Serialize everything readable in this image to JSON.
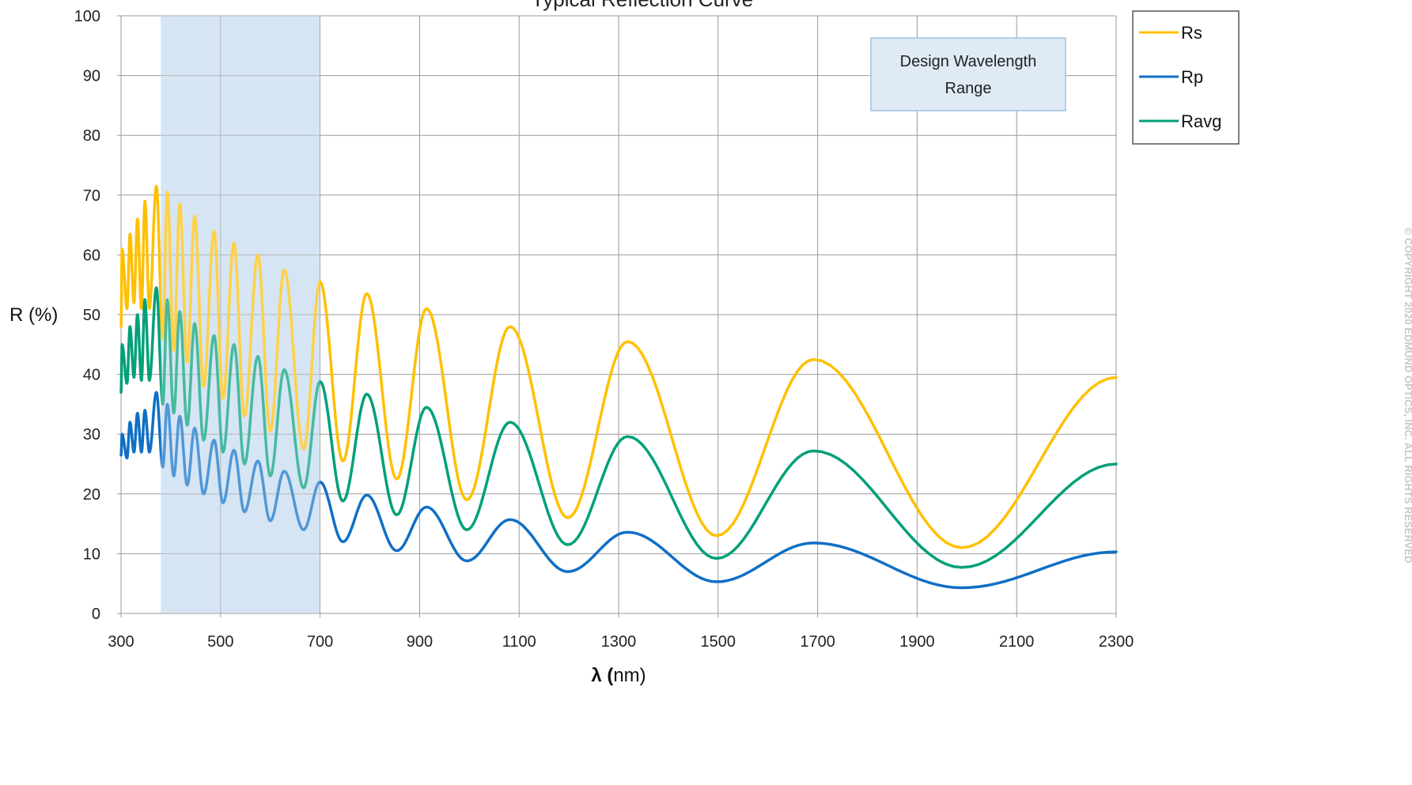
{
  "chart_data": {
    "type": "line",
    "title": "Typical Reflection Curve",
    "xlabel_bold": "λ (",
    "xlabel_rest": "nm)",
    "ylabel": "R (%)",
    "xlim": [
      300,
      2300
    ],
    "ylim": [
      0,
      100
    ],
    "x_ticks": [
      300,
      500,
      700,
      900,
      1100,
      1300,
      1500,
      1700,
      1900,
      2100,
      2300
    ],
    "y_ticks": [
      0,
      10,
      20,
      30,
      40,
      50,
      60,
      70,
      80,
      90,
      100
    ],
    "grid": true,
    "legend_position": "right",
    "highlight_band": {
      "x_start": 380,
      "x_end": 700,
      "color": "#c5dbf0"
    },
    "annotation": {
      "line1": "Design Wavelength",
      "line2": "Range"
    },
    "copyright": "© COPYRIGHT 2020 EDMUND OPTICS, INC. ALL RIGHTS RESERVED",
    "series": [
      {
        "name": "Rs",
        "color": "#ffc000",
        "peaks": [
          [
            302,
            61
          ],
          [
            318,
            63.5
          ],
          [
            333,
            66
          ],
          [
            348,
            69
          ],
          [
            371,
            71.5
          ],
          [
            393,
            70.5
          ],
          [
            418,
            68.5
          ],
          [
            448,
            66.5
          ],
          [
            487,
            64
          ],
          [
            527,
            62
          ],
          [
            575,
            60
          ],
          [
            628,
            57.5
          ],
          [
            700,
            55.5
          ],
          [
            794,
            53.5
          ],
          [
            914,
            51
          ],
          [
            1082,
            48
          ],
          [
            1318,
            45.5
          ],
          [
            1692,
            42.5
          ],
          [
            2300,
            39.5
          ]
        ],
        "troughs": [
          [
            300,
            48
          ],
          [
            312,
            51
          ],
          [
            326,
            52
          ],
          [
            341,
            51
          ],
          [
            357,
            51
          ],
          [
            384,
            46
          ],
          [
            406,
            44
          ],
          [
            433,
            42
          ],
          [
            466,
            38
          ],
          [
            505,
            36
          ],
          [
            548,
            33
          ],
          [
            600,
            30.5
          ],
          [
            667,
            27.5
          ],
          [
            746,
            25.5
          ],
          [
            854,
            22.5
          ],
          [
            995,
            19
          ],
          [
            1198,
            16
          ],
          [
            1497,
            13
          ],
          [
            1990,
            11
          ]
        ]
      },
      {
        "name": "Rp",
        "color": "#0f6fc6",
        "peaks": [
          [
            302,
            30
          ],
          [
            318,
            32
          ],
          [
            333,
            33.5
          ],
          [
            348,
            34
          ],
          [
            371,
            37
          ],
          [
            393,
            35
          ],
          [
            418,
            33
          ],
          [
            448,
            31
          ],
          [
            487,
            29
          ],
          [
            527,
            27.3
          ],
          [
            575,
            25.5
          ],
          [
            628,
            23.8
          ],
          [
            700,
            22
          ],
          [
            794,
            19.8
          ],
          [
            914,
            17.8
          ],
          [
            1082,
            15.7
          ],
          [
            1318,
            13.6
          ],
          [
            1692,
            11.8
          ],
          [
            2300,
            10.3
          ]
        ],
        "troughs": [
          [
            300,
            26.5
          ],
          [
            312,
            26
          ],
          [
            326,
            27
          ],
          [
            341,
            27
          ],
          [
            357,
            27
          ],
          [
            384,
            24.5
          ],
          [
            406,
            23
          ],
          [
            433,
            21.5
          ],
          [
            466,
            20
          ],
          [
            505,
            18.5
          ],
          [
            548,
            17
          ],
          [
            600,
            15.5
          ],
          [
            667,
            14
          ],
          [
            746,
            12
          ],
          [
            854,
            10.5
          ],
          [
            995,
            8.8
          ],
          [
            1198,
            7
          ],
          [
            1497,
            5.3
          ],
          [
            1990,
            4.3
          ]
        ]
      },
      {
        "name": "Ravg",
        "color": "#00a079",
        "peaks": [
          [
            302,
            45
          ],
          [
            318,
            48
          ],
          [
            333,
            50
          ],
          [
            348,
            52.5
          ],
          [
            371,
            54.5
          ],
          [
            393,
            52.5
          ],
          [
            418,
            50.5
          ],
          [
            448,
            48.5
          ],
          [
            487,
            46.5
          ],
          [
            527,
            45
          ],
          [
            575,
            43
          ],
          [
            628,
            40.8
          ],
          [
            700,
            38.8
          ],
          [
            794,
            36.7
          ],
          [
            914,
            34.5
          ],
          [
            1082,
            32
          ],
          [
            1318,
            29.6
          ],
          [
            1692,
            27.2
          ],
          [
            2300,
            25
          ]
        ],
        "troughs": [
          [
            300,
            37
          ],
          [
            312,
            38.5
          ],
          [
            326,
            39.5
          ],
          [
            341,
            39
          ],
          [
            357,
            39
          ],
          [
            384,
            35
          ],
          [
            406,
            33.5
          ],
          [
            433,
            31.5
          ],
          [
            466,
            29
          ],
          [
            505,
            27
          ],
          [
            548,
            25
          ],
          [
            600,
            23
          ],
          [
            667,
            21
          ],
          [
            746,
            18.8
          ],
          [
            854,
            16.5
          ],
          [
            995,
            14
          ],
          [
            1198,
            11.5
          ],
          [
            1497,
            9.2
          ],
          [
            1990,
            7.7
          ]
        ]
      }
    ]
  }
}
